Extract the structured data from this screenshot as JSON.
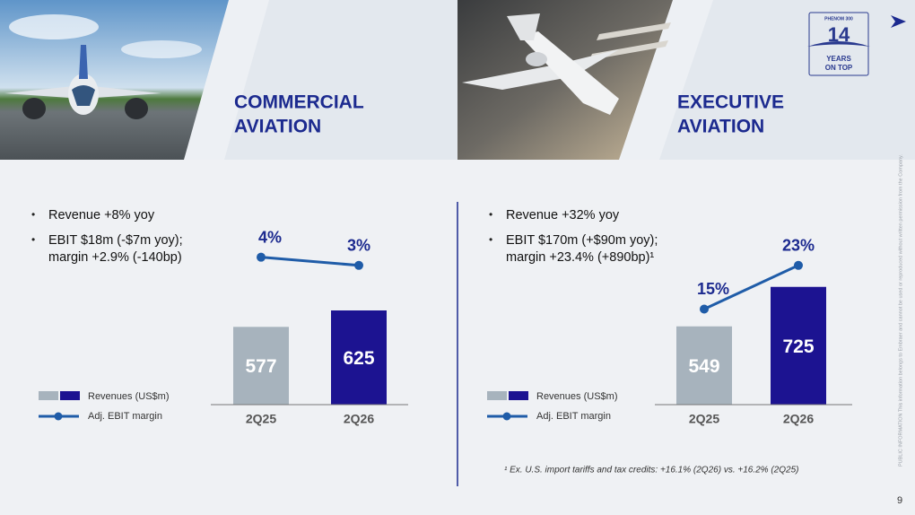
{
  "logo": {
    "brand": "PHENOM 300",
    "number": "14",
    "caption_lines": [
      "YEARS",
      "ON TOP"
    ]
  },
  "sections": [
    {
      "title_lines": [
        "COMMERCIAL",
        "AVIATION"
      ],
      "bullets": [
        [
          "Revenue +8% yoy"
        ],
        [
          "EBIT $18m (-$7m yoy);",
          "margin +2.9% (-140bp)"
        ]
      ]
    },
    {
      "title_lines": [
        "EXECUTIVE",
        "AVIATION"
      ],
      "bullets": [
        [
          "Revenue +32% yoy"
        ],
        [
          "EBIT $170m (+$90m yoy);",
          "margin +23.4% (+890bp)¹"
        ]
      ]
    }
  ],
  "chart_data": [
    {
      "type": "bar-line",
      "categories": [
        "2Q25",
        "2Q26"
      ],
      "ylim": [
        350,
        900
      ],
      "y2lim": [
        -14,
        9
      ],
      "series": [
        {
          "name": "Revenues (US$m)",
          "colors": [
            "#a7b3bd",
            "#1c1391"
          ],
          "values": [
            577,
            625
          ]
        },
        {
          "name": "Adj. EBIT margin",
          "color": "#1f5ca8",
          "axis": "y2",
          "values": [
            4,
            3
          ],
          "value_labels": [
            "4%",
            "3%"
          ]
        }
      ]
    },
    {
      "type": "bar-line",
      "categories": [
        "2Q25",
        "2Q26"
      ],
      "ylim": [
        200,
        1040
      ],
      "y2lim": [
        -2.5,
        32
      ],
      "series": [
        {
          "name": "Revenues (US$m)",
          "colors": [
            "#a7b3bd",
            "#1c1391"
          ],
          "values": [
            549,
            725
          ]
        },
        {
          "name": "Adj. EBIT margin",
          "color": "#1f5ca8",
          "axis": "y2",
          "values": [
            15,
            23
          ],
          "value_labels": [
            "15%",
            "23%"
          ]
        }
      ]
    }
  ],
  "footnote": "¹ Ex. U.S. import tariffs and tax credits: +16.1% (2Q26) vs. +16.2% (2Q25)",
  "side_note": "PUBLIC INFORMATION     This information belongs to Embraer and cannot be used or reproduced without written permission from the Company.",
  "page_number": "9"
}
